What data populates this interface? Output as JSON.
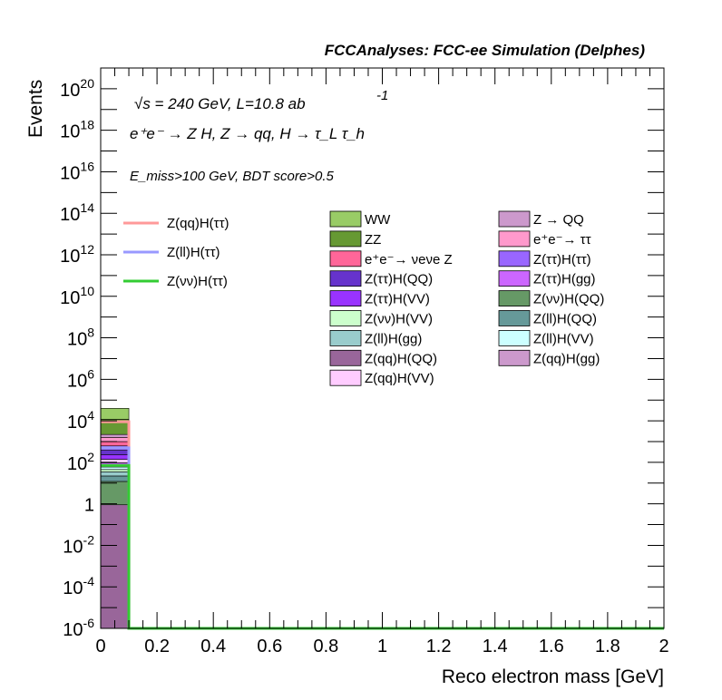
{
  "chart_data": {
    "type": "bar",
    "title": "FCCAnalyses: FCC-ee Simulation (Delphes)",
    "annotations": {
      "energy": "√s = 240 GeV, L=10.8 ab",
      "energy_exp": "-1",
      "process": "e⁺e⁻ → Z H, Z → qq, H → τ_L τ_h",
      "selection": "E_miss>100 GeV, BDT score>0.5"
    },
    "xlabel": "Reco electron mass [GeV]",
    "ylabel": "Events",
    "xlim": [
      0,
      2
    ],
    "ylim": [
      1e-06,
      1e+21
    ],
    "yscale": "log",
    "x_tick_labels": [
      "0",
      "0.2",
      "0.4",
      "0.6",
      "0.8",
      "1",
      "1.2",
      "1.4",
      "1.6",
      "1.8",
      "2"
    ],
    "y_tick_labels": [
      {
        "base": "10",
        "exp": "-6",
        "value": 1e-06
      },
      {
        "base": "10",
        "exp": "-4",
        "value": 0.0001
      },
      {
        "base": "10",
        "exp": "-2",
        "value": 0.01
      },
      {
        "base": "1",
        "exp": "",
        "value": 1
      },
      {
        "base": "10",
        "exp": "2",
        "value": 100.0
      },
      {
        "base": "10",
        "exp": "4",
        "value": 10000.0
      },
      {
        "base": "10",
        "exp": "6",
        "value": 1000000.0
      },
      {
        "base": "10",
        "exp": "8",
        "value": 100000000.0
      },
      {
        "base": "10",
        "exp": "10",
        "value": 10000000000.0
      },
      {
        "base": "10",
        "exp": "12",
        "value": 1000000000000.0
      },
      {
        "base": "10",
        "exp": "14",
        "value": 100000000000000.0
      },
      {
        "base": "10",
        "exp": "16",
        "value": 1e+16
      },
      {
        "base": "10",
        "exp": "18",
        "value": 1e+18
      },
      {
        "base": "10",
        "exp": "20",
        "value": 1e+20
      }
    ],
    "bin": [
      0,
      0.1
    ],
    "stack": [
      {
        "name": "Z(qq)H(gg)",
        "color": "#cc99cc",
        "top": 1e-06
      },
      {
        "name": "Z(qq)H(QQ)",
        "color": "#99669a",
        "top": 0.9
      },
      {
        "name": "Z(νν)H(QQ)",
        "color": "#669966",
        "top": 12
      },
      {
        "name": "Z(ll)H(QQ)",
        "color": "#669999",
        "top": 22
      },
      {
        "name": "Z(ll)H(gg)",
        "color": "#99cccc",
        "top": 35
      },
      {
        "name": "Z(νν)H(VV)",
        "color": "#ccffcc",
        "top": 45
      },
      {
        "name": "Z(ll)H(VV)",
        "color": "#ccffff",
        "top": 60
      },
      {
        "name": "Z(ττ)H(gg)",
        "color": "#cc66ff",
        "top": 95
      },
      {
        "name": "Z(qq)H(VV)",
        "color": "#ffccff",
        "top": 140
      },
      {
        "name": "Z(ττ)H(VV)",
        "color": "#9933ff",
        "top": 230
      },
      {
        "name": "Z(ττ)H(QQ)",
        "color": "#6633cc",
        "top": 380
      },
      {
        "name": "Z(ττ)H(ττ)",
        "color": "#9966ff",
        "top": 620
      },
      {
        "name": "e⁺e⁻→ νeνe Z",
        "color": "#ff6699",
        "top": 1000
      },
      {
        "name": "e⁺e⁻→ ττ",
        "color": "#ff99cc",
        "top": 1600
      },
      {
        "name": "Z → QQ",
        "color": "#cc99cc",
        "top": 2200
      },
      {
        "name": "ZZ",
        "color": "#669933",
        "top": 12000
      },
      {
        "name": "WW",
        "color": "#99cc66",
        "top": 40000
      }
    ],
    "signals": [
      {
        "name": "Z(qq)H(ττ)",
        "color": "#ff9999",
        "value": 9000
      },
      {
        "name": "Z(ll)H(ττ)",
        "color": "#9999ff",
        "value": 500
      },
      {
        "name": "Z(νν)H(ττ)",
        "color": "#33cc33",
        "value": 70
      }
    ],
    "legend_left": [
      {
        "name": "Z(qq)H(ττ)",
        "color": "#ff9999"
      },
      {
        "name": "Z(ll)H(ττ)",
        "color": "#9999ff"
      },
      {
        "name": "Z(νν)H(ττ)",
        "color": "#33cc33"
      }
    ],
    "legend_col1": [
      {
        "name": "WW",
        "color": "#99cc66"
      },
      {
        "name": "ZZ",
        "color": "#669933"
      },
      {
        "name": "e⁺e⁻→ νeνe Z",
        "color": "#ff6699"
      },
      {
        "name": "Z(ττ)H(QQ)",
        "color": "#6633cc"
      },
      {
        "name": "Z(ττ)H(VV)",
        "color": "#9933ff"
      },
      {
        "name": "Z(νν)H(VV)",
        "color": "#ccffcc"
      },
      {
        "name": "Z(ll)H(gg)",
        "color": "#99cccc"
      },
      {
        "name": "Z(qq)H(QQ)",
        "color": "#99669a"
      },
      {
        "name": "Z(qq)H(VV)",
        "color": "#ffccff"
      }
    ],
    "legend_col2": [
      {
        "name": "Z → QQ",
        "color": "#cc99cc"
      },
      {
        "name": "e⁺e⁻→ ττ",
        "color": "#ff99cc"
      },
      {
        "name": "Z(ττ)H(ττ)",
        "color": "#9966ff"
      },
      {
        "name": "Z(ττ)H(gg)",
        "color": "#cc66ff"
      },
      {
        "name": "Z(νν)H(QQ)",
        "color": "#669966"
      },
      {
        "name": "Z(ll)H(QQ)",
        "color": "#669999"
      },
      {
        "name": "Z(ll)H(VV)",
        "color": "#ccffff"
      },
      {
        "name": "Z(qq)H(gg)",
        "color": "#cc99cc"
      }
    ]
  }
}
